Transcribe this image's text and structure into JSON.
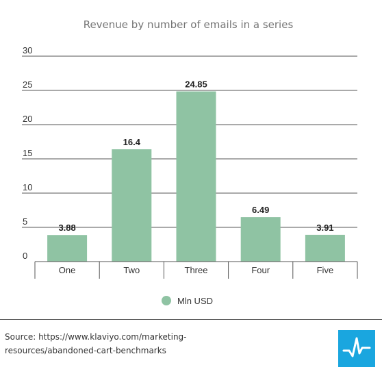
{
  "chart_data": {
    "type": "bar",
    "title": "Revenue by number of emails in a series",
    "categories": [
      "One",
      "Two",
      "Three",
      "Four",
      "Five"
    ],
    "series": [
      {
        "name": "Mln USD",
        "values": [
          3.88,
          16.4,
          24.85,
          6.49,
          3.91
        ],
        "labels": [
          "3.88",
          "16.4",
          "24.85",
          "6.49",
          "3.91"
        ]
      }
    ],
    "ylim": [
      0,
      30
    ],
    "yticks": [
      0,
      5,
      10,
      15,
      20,
      25,
      30
    ],
    "xlabel": "",
    "ylabel": "",
    "grid": true,
    "legend": "bottom-center",
    "colors": {
      "bar": "#8fc3a3",
      "grid": "#555555",
      "axis": "#555555"
    }
  },
  "source": {
    "line1": "Source: https://www.klaviyo.com/marketing-",
    "line2": "resources/abandoned-cart-benchmarks"
  },
  "logo": {
    "icon": "pulse-line-icon",
    "color": "#1aa6df"
  }
}
